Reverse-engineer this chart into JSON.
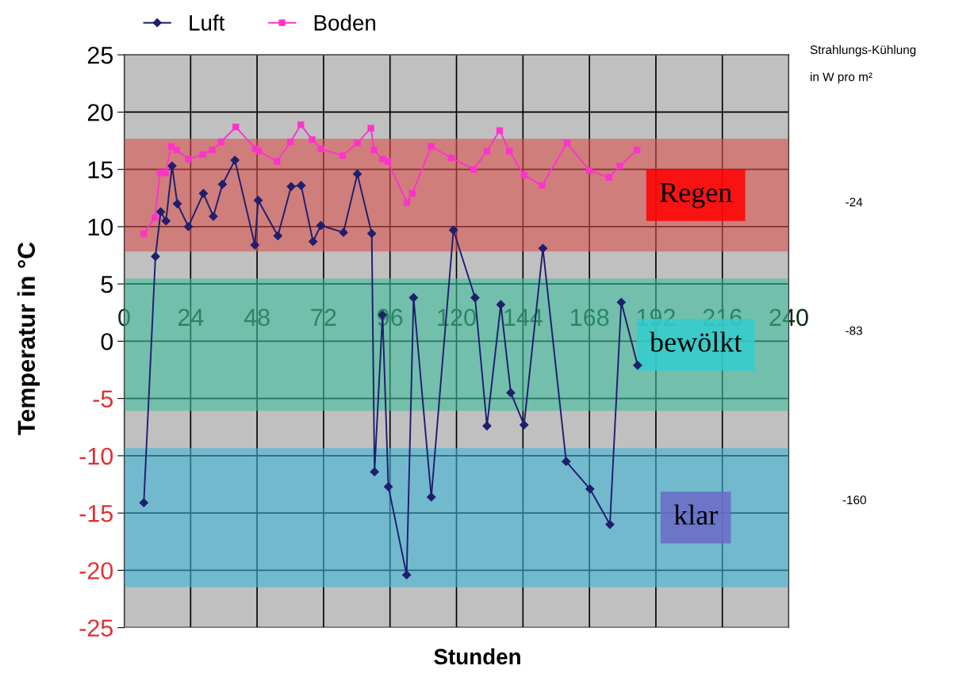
{
  "chart_data": {
    "type": "line",
    "xlabel": "Stunden",
    "ylabel": "Temperatur in °C",
    "xlim": [
      0,
      240
    ],
    "xticks": [
      0,
      24,
      48,
      72,
      96,
      120,
      144,
      168,
      192,
      216,
      240
    ],
    "ylim": [
      -25,
      25
    ],
    "yticks": [
      -25,
      -20,
      -15,
      -10,
      -5,
      0,
      5,
      10,
      15,
      20,
      25
    ],
    "grid": true,
    "legend": "top left",
    "line_style": "solid",
    "series": [
      {
        "name": "Luft",
        "color": "#1f1f6e",
        "marker": "diamond",
        "x": [
          7.1,
          11.3,
          13.2,
          15.1,
          17.3,
          19.2,
          23.2,
          28.6,
          32.2,
          35.5,
          40,
          47.2,
          48.4,
          55.5,
          60.3,
          63.9,
          68.2,
          71,
          79.2,
          84.2,
          89.4,
          90.4,
          93.3,
          95.4,
          102,
          104.5,
          110.9,
          118.9,
          126.7,
          131,
          136,
          139.6,
          144.4,
          151.2,
          159.6,
          168.2,
          175.4,
          179.5,
          185.4
        ],
        "values": [
          -14.1,
          7.4,
          11.3,
          10.5,
          15.3,
          12.0,
          10.0,
          12.9,
          10.9,
          13.7,
          15.8,
          8.4,
          12.3,
          9.2,
          13.5,
          13.6,
          8.7,
          10.1,
          9.5,
          14.6,
          9.4,
          -11.4,
          2.3,
          -12.7,
          -20.4,
          3.8,
          -13.6,
          9.7,
          3.8,
          -7.4,
          3.2,
          -4.5,
          -7.3,
          8.1,
          -10.5,
          -12.9,
          -16.0,
          3.4,
          -2.1
        ]
      },
      {
        "name": "Boden",
        "color": "#ff33cc",
        "marker": "square",
        "x": [
          7.1,
          11.1,
          13,
          14.9,
          17,
          18.9,
          23.2,
          28.4,
          31.8,
          35,
          40.3,
          47.4,
          48.6,
          55.2,
          60.1,
          63.8,
          67.9,
          71.1,
          78.9,
          84.2,
          89.1,
          90.2,
          93.3,
          95.2,
          102.1,
          104,
          110.9,
          118.1,
          126.2,
          131,
          135.6,
          139.1,
          144.4,
          150.9,
          159.9,
          168,
          175.1,
          179,
          185.2
        ],
        "values": [
          9.4,
          10.8,
          14.7,
          14.7,
          17.0,
          16.7,
          15.9,
          16.3,
          16.7,
          17.4,
          18.7,
          16.8,
          16.6,
          15.7,
          17.4,
          18.9,
          17.6,
          16.8,
          16.2,
          17.3,
          18.6,
          16.7,
          15.9,
          15.7,
          12.1,
          12.9,
          17.0,
          16.0,
          15.0,
          16.6,
          18.4,
          16.6,
          14.5,
          13.6,
          17.3,
          14.9,
          14.3,
          15.3,
          16.7
        ]
      }
    ],
    "bands": [
      {
        "axis": "y",
        "from": 7.9,
        "to": 17.6,
        "label": "Regen",
        "color": "#d9534f"
      },
      {
        "axis": "y",
        "from": -6.0,
        "to": 5.4,
        "label": "bewölkt",
        "color": "#3fbf9f"
      },
      {
        "axis": "y",
        "from": -21.4,
        "to": -9.4,
        "label": "klar",
        "color": "#3fb5d8"
      }
    ],
    "annotations": [
      "Strahlungs-Kühlung",
      "in W pro m²",
      "-24",
      "-83",
      "-160"
    ]
  }
}
